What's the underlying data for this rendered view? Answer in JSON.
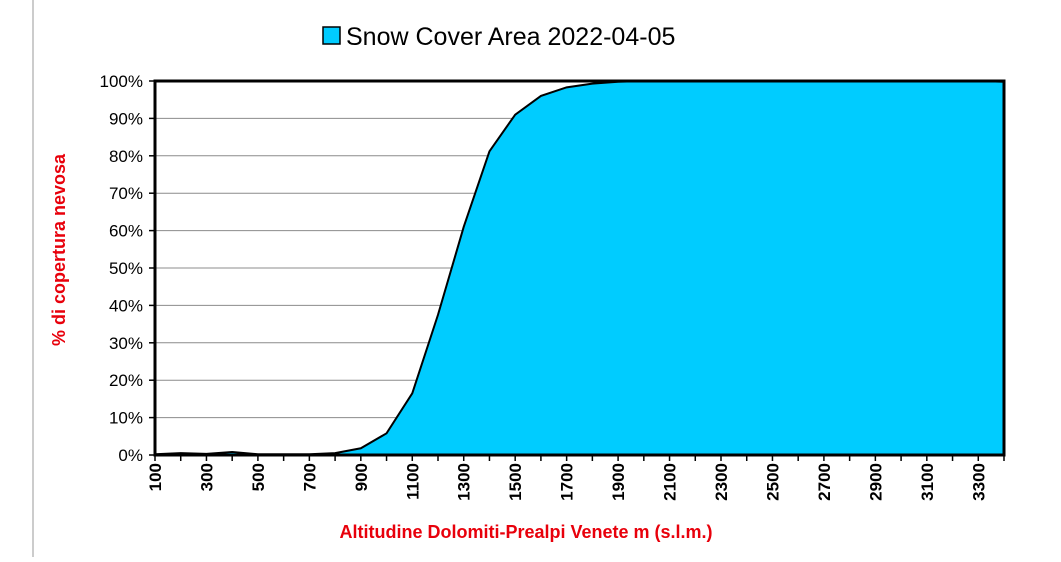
{
  "chart_data": {
    "type": "area",
    "title": "Snow Cover Area 2022-04-05",
    "legend": {
      "label": "Snow Cover Area 2022-04-05",
      "placement": "top"
    },
    "xlabel": "Altitudine Dolomiti-Prealpi Venete m (s.l.m.)",
    "ylabel": "% di copertura nevosa",
    "xlim": [
      100,
      3400
    ],
    "ylim": [
      0,
      100
    ],
    "x_ticks": [
      "100",
      "300",
      "500",
      "700",
      "900",
      "1100",
      "1300",
      "1500",
      "1700",
      "1900",
      "2100",
      "2300",
      "2500",
      "2700",
      "2900",
      "3100",
      "3300"
    ],
    "y_ticks": [
      "0%",
      "10%",
      "20%",
      "30%",
      "40%",
      "50%",
      "60%",
      "70%",
      "80%",
      "90%",
      "100%"
    ],
    "grid": "horizontal",
    "fill_color": "#00ccff",
    "line_color": "#000000",
    "series": [
      {
        "name": "Snow Cover Area 2022-04-05",
        "x": [
          100,
          200,
          300,
          400,
          500,
          600,
          700,
          800,
          900,
          1000,
          1100,
          1200,
          1300,
          1400,
          1500,
          1600,
          1700,
          1800,
          1900,
          2000,
          2100,
          2200,
          2300,
          2400,
          2500,
          2600,
          2700,
          2800,
          2900,
          3000,
          3100,
          3200,
          3300,
          3400
        ],
        "values": [
          0.2,
          0.5,
          0.3,
          0.8,
          0.2,
          0.2,
          0.2,
          0.5,
          1.8,
          5.8,
          16.5,
          37.5,
          61.0,
          81.2,
          91.0,
          96.0,
          98.3,
          99.3,
          99.8,
          100,
          100,
          100,
          100,
          100,
          100,
          100,
          100,
          100,
          100,
          100,
          100,
          100,
          100,
          99.8
        ]
      }
    ]
  }
}
